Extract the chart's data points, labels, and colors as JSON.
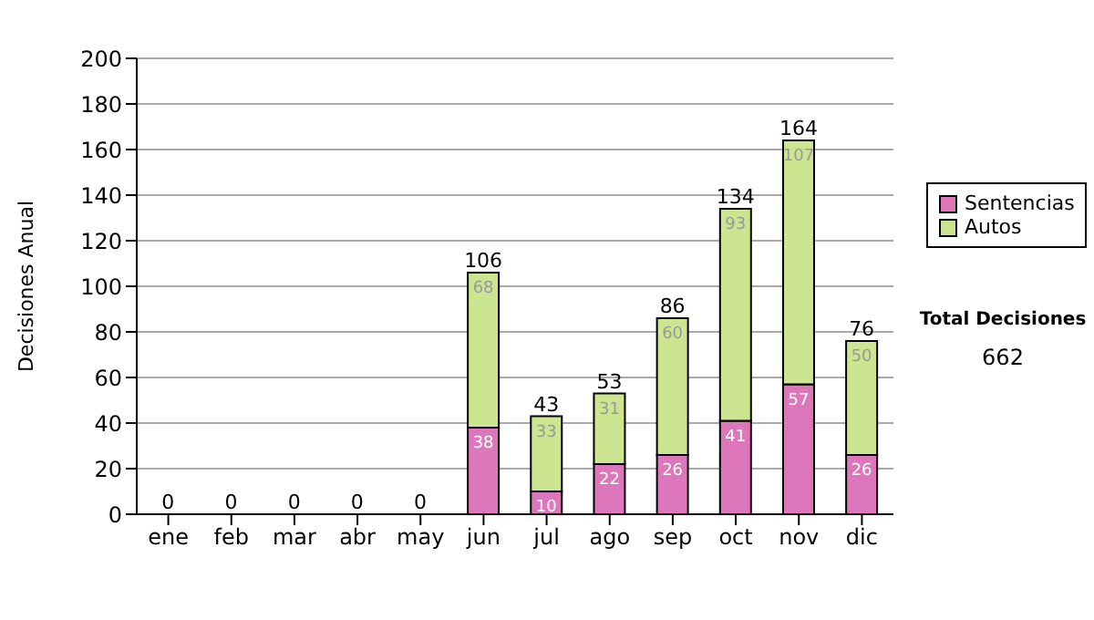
{
  "chart_data": {
    "type": "bar",
    "stacked": true,
    "ylabel": "Decisiones Anual",
    "categories": [
      "ene",
      "feb",
      "mar",
      "abr",
      "may",
      "jun",
      "jul",
      "ago",
      "sep",
      "oct",
      "nov",
      "dic"
    ],
    "series": [
      {
        "name": "Sentencias",
        "color": "#dd77bb",
        "values": [
          0,
          0,
          0,
          0,
          0,
          38,
          10,
          22,
          26,
          41,
          57,
          26
        ],
        "value_labels": [
          null,
          null,
          null,
          null,
          null,
          "38",
          "10",
          "22",
          "26",
          "41",
          "57",
          "26"
        ]
      },
      {
        "name": "Autos",
        "color": "#cce590",
        "values": [
          0,
          0,
          0,
          0,
          0,
          68,
          33,
          31,
          60,
          93,
          107,
          50
        ],
        "value_labels": [
          null,
          null,
          null,
          null,
          null,
          "68",
          "33",
          "31",
          "60",
          "93",
          "107",
          "50"
        ]
      }
    ],
    "totals": [
      "0",
      "0",
      "0",
      "0",
      "0",
      "106",
      "43",
      "53",
      "86",
      "134",
      "164",
      "76"
    ],
    "ylim": [
      0,
      200
    ],
    "yticks": [
      0,
      20,
      40,
      60,
      80,
      100,
      120,
      140,
      160,
      180,
      200
    ],
    "grid": "y",
    "legend": "right",
    "annotations": [
      "Total Decisiones",
      "662"
    ]
  }
}
